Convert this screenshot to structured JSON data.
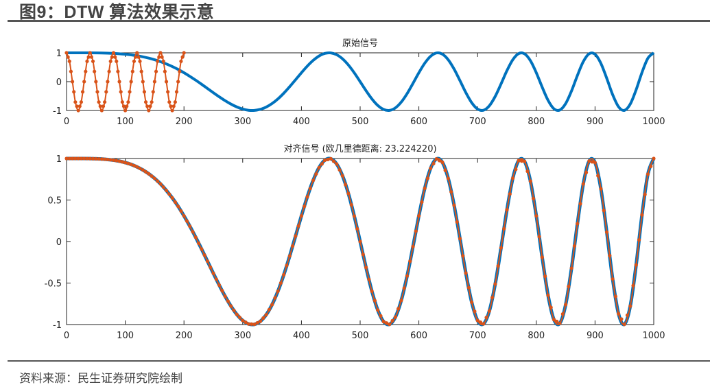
{
  "figure": {
    "title": "图9：DTW 算法效果示意",
    "source": "资料来源：民生证券研究院绘制"
  },
  "colors": {
    "series_blue": "#0072BD",
    "series_orange": "#D95319",
    "axis": "#222222",
    "rule": "#555555"
  },
  "chart_data": [
    {
      "type": "line",
      "title": "原始信号",
      "xlim": [
        0,
        1000
      ],
      "ylim": [
        -1,
        1
      ],
      "xticks": [
        "0",
        "100",
        "200",
        "300",
        "400",
        "500",
        "600",
        "700",
        "800",
        "900",
        "1000"
      ],
      "yticks": [
        "1",
        "0",
        "-1"
      ],
      "ytick_values": [
        1,
        0,
        -1
      ],
      "grid": false,
      "series": [
        {
          "color": "#0072BD",
          "marker": "none",
          "x_start": 0,
          "x_step": 10,
          "values": [
            1,
            1,
            1,
            1,
            0.999,
            0.997,
            0.994,
            0.988,
            0.98,
            0.968,
            0.951,
            0.929,
            0.899,
            0.862,
            0.816,
            0.76,
            0.694,
            0.615,
            0.526,
            0.424,
            0.309,
            0.184,
            0.05,
            -0.091,
            -0.237,
            -0.383,
            -0.525,
            -0.659,
            -0.778,
            -0.878,
            -0.951,
            -0.993,
            -0.997,
            -0.961,
            -0.882,
            -0.76,
            -0.598,
            -0.4,
            -0.175,
            0.066,
            0.309,
            0.539,
            0.737,
            0.89,
            0.98,
            0.997,
            0.934,
            0.792,
            0.578,
            0.306,
            0,
            -0.312,
            -0.598,
            -0.825,
            -0.965,
            -0.997,
            -0.91,
            -0.709,
            -0.414,
            -0.06,
            0.309,
            0.64,
            0.882,
            0.995,
            0.955,
            0.76,
            0.437,
            0.035,
            -0.38,
            -0.731,
            -0.951,
            -0.992,
            -0.837,
            -0.512,
            -0.075,
            0.383,
            0.762,
            0.975,
            0.965,
            0.727,
            0.309,
            -0.19,
            -0.647,
            -0.94,
            -0.985,
            -0.76,
            -0.321,
            0.215,
            0.694,
            0.969,
            0.951,
            0.635,
            0.113,
            -0.451,
            -0.87,
            -0.997,
            -0.778,
            -0.282,
            0.321,
            0.811,
            1
          ]
        },
        {
          "color": "#D95319",
          "marker": "dot",
          "x_start": 0,
          "x_step": 5,
          "values": [
            1,
            0.707,
            0,
            -0.707,
            -1,
            -0.707,
            0,
            0.707,
            1,
            0.707,
            0,
            -0.707,
            -1,
            -0.707,
            0,
            0.707,
            1,
            0.707,
            0,
            -0.707,
            -1,
            -0.707,
            0,
            0.707,
            1,
            0.707,
            0,
            -0.707,
            -1,
            -0.707,
            0,
            0.707,
            1,
            0.707,
            0,
            -0.707,
            -1,
            -0.707,
            0,
            0.707,
            1
          ]
        }
      ]
    },
    {
      "type": "line",
      "title": "对齐信号 (欧几里德距离: 23.224220)",
      "xlim": [
        0,
        1000
      ],
      "ylim": [
        -1,
        1
      ],
      "xticks": [
        "0",
        "100",
        "200",
        "300",
        "400",
        "500",
        "600",
        "700",
        "800",
        "900",
        "1000"
      ],
      "yticks": [
        "1",
        "0.5",
        "0",
        "-0.5",
        "-1"
      ],
      "ytick_values": [
        1,
        0.5,
        0,
        -0.5,
        -1
      ],
      "grid": false,
      "series": [
        {
          "color": "#0072BD",
          "marker": "none",
          "x_start": 0,
          "x_step": 10,
          "values": [
            1,
            1,
            1,
            1,
            0.999,
            0.997,
            0.994,
            0.988,
            0.98,
            0.968,
            0.951,
            0.929,
            0.899,
            0.862,
            0.816,
            0.76,
            0.694,
            0.615,
            0.526,
            0.424,
            0.309,
            0.184,
            0.05,
            -0.091,
            -0.237,
            -0.383,
            -0.525,
            -0.659,
            -0.778,
            -0.878,
            -0.951,
            -0.993,
            -0.997,
            -0.961,
            -0.882,
            -0.76,
            -0.598,
            -0.4,
            -0.175,
            0.066,
            0.309,
            0.539,
            0.737,
            0.89,
            0.98,
            0.997,
            0.934,
            0.792,
            0.578,
            0.306,
            0,
            -0.312,
            -0.598,
            -0.825,
            -0.965,
            -0.997,
            -0.91,
            -0.709,
            -0.414,
            -0.06,
            0.309,
            0.64,
            0.882,
            0.995,
            0.955,
            0.76,
            0.437,
            0.035,
            -0.38,
            -0.731,
            -0.951,
            -0.992,
            -0.837,
            -0.512,
            -0.075,
            0.383,
            0.762,
            0.975,
            0.965,
            0.727,
            0.309,
            -0.19,
            -0.647,
            -0.94,
            -0.985,
            -0.76,
            -0.321,
            0.215,
            0.694,
            0.969,
            0.951,
            0.635,
            0.113,
            -0.451,
            -0.87,
            -0.997,
            -0.778,
            -0.282,
            0.321,
            0.811,
            1
          ]
        },
        {
          "color": "#D95319",
          "marker": "dot",
          "x_start": 0,
          "x_step": 10,
          "values": [
            1,
            1,
            1,
            1,
            0.999,
            0.997,
            0.994,
            0.988,
            0.98,
            0.968,
            0.951,
            0.929,
            0.899,
            0.862,
            0.816,
            0.76,
            0.694,
            0.615,
            0.526,
            0.424,
            0.309,
            0.184,
            0.05,
            -0.091,
            -0.237,
            -0.383,
            -0.525,
            -0.659,
            -0.778,
            -0.878,
            -0.951,
            -0.993,
            -0.997,
            -0.961,
            -0.882,
            -0.76,
            -0.598,
            -0.4,
            -0.175,
            0.066,
            0.309,
            0.539,
            0.737,
            0.89,
            0.98,
            0.997,
            0.934,
            0.792,
            0.578,
            0.306,
            0,
            -0.312,
            -0.598,
            -0.825,
            -0.965,
            -0.997,
            -0.91,
            -0.709,
            -0.414,
            -0.06,
            0.309,
            0.64,
            0.882,
            0.995,
            0.955,
            0.76,
            0.437,
            0.035,
            -0.38,
            -0.731,
            -0.951,
            -0.992,
            -0.837,
            -0.512,
            -0.075,
            0.383,
            0.762,
            0.975,
            0.965,
            0.727,
            0.309,
            -0.19,
            -0.647,
            -0.94,
            -0.985,
            -0.76,
            -0.321,
            0.215,
            0.694,
            0.969,
            0.951,
            0.635,
            0.113,
            -0.451,
            -0.87,
            -0.997,
            -0.778,
            -0.282,
            0.321,
            0.811,
            1
          ]
        }
      ]
    }
  ]
}
